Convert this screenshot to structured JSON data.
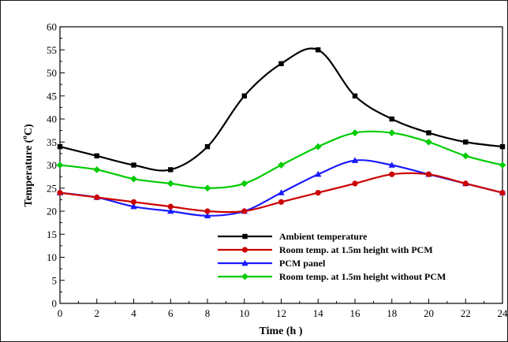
{
  "chart_data": {
    "type": "line",
    "xlabel": "Time (h  )",
    "ylabel": "Temperature (°C)",
    "ylabel_parts": {
      "pre": "Temperature (",
      "sup": "o",
      "post": "C)"
    },
    "xlim": [
      0,
      24
    ],
    "ylim": [
      0,
      60
    ],
    "x_ticks": [
      0,
      2,
      4,
      6,
      8,
      10,
      12,
      14,
      16,
      18,
      20,
      22,
      24
    ],
    "y_ticks": [
      0,
      5,
      10,
      15,
      20,
      25,
      30,
      35,
      40,
      45,
      50,
      55,
      60
    ],
    "grid": false,
    "legend_position": "bottom-right",
    "series": [
      {
        "name": "Ambient temperature",
        "color": "#000000",
        "marker": "square",
        "x": [
          0,
          2,
          4,
          6,
          8,
          10,
          12,
          14,
          16,
          18,
          20,
          22,
          24
        ],
        "y": [
          34,
          32,
          30,
          29,
          34,
          45,
          52,
          55,
          45,
          40,
          37,
          35,
          34
        ]
      },
      {
        "name": "Room temp. at 1.5m height with PCM",
        "color": "#cc0000",
        "marker": "circle",
        "x": [
          0,
          2,
          4,
          6,
          8,
          10,
          12,
          14,
          16,
          18,
          20,
          22,
          24
        ],
        "y": [
          24,
          23,
          22,
          21,
          20,
          20,
          22,
          24,
          26,
          28,
          28,
          26,
          24
        ]
      },
      {
        "name": "PCM panel",
        "color": "#1a1aff",
        "marker": "triangle",
        "x": [
          0,
          2,
          4,
          6,
          8,
          10,
          12,
          14,
          16,
          18,
          20,
          22,
          24
        ],
        "y": [
          24,
          23,
          21,
          20,
          19,
          20,
          24,
          28,
          31,
          30,
          28,
          26,
          24
        ]
      },
      {
        "name": "Room temp. at 1.5m height without PCM",
        "color": "#00cc00",
        "marker": "diamond",
        "x": [
          0,
          2,
          4,
          6,
          8,
          10,
          12,
          14,
          16,
          18,
          20,
          22,
          24
        ],
        "y": [
          30,
          29,
          27,
          26,
          25,
          26,
          30,
          34,
          37,
          37,
          35,
          32,
          30
        ]
      }
    ]
  }
}
